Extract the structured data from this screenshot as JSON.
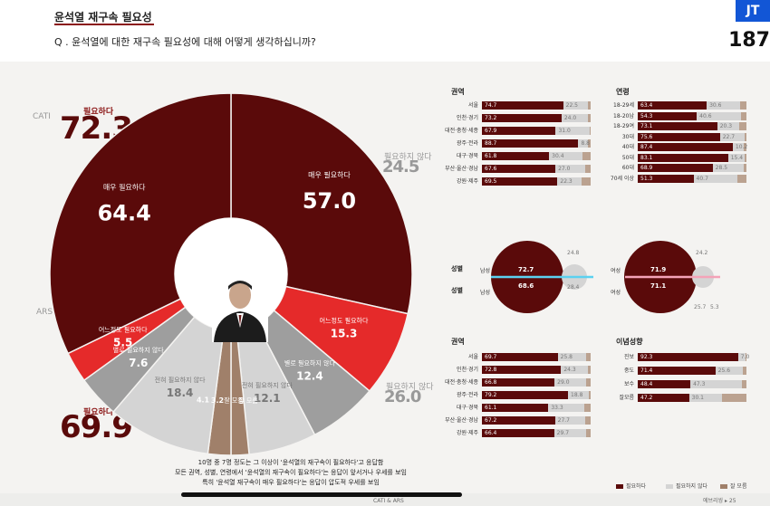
{
  "header": {
    "title": "윤석열 재구속 필요성",
    "question": "Q . 윤석열에 대한 재구속 필요성에 대해 어떻게 생각하십니까?",
    "badge": "JT",
    "badge_number": "187"
  },
  "colors": {
    "dark": "#5a0a0a",
    "red": "#e52a2a",
    "grey_dark": "#9e9e9e",
    "grey_light": "#d4d4d4",
    "brown": "#a0806a",
    "brown_light": "#bba290"
  },
  "donut": {
    "cati_label": "CATI",
    "ars_label": "ARS",
    "cati_need_label": "필요하다",
    "cati_need_total": "72.3",
    "ars_need_label": "필요하다",
    "ars_need_total": "69.9",
    "cati_noneed_label": "필요하지 않다",
    "cati_noneed_total": "24.5",
    "ars_noneed_label": "필요하지 않다",
    "ars_noneed_total": "26.0",
    "segments": [
      {
        "group": "CATI",
        "label": "매우 필요하다",
        "value": 57.0,
        "color": "#5a0a0a"
      },
      {
        "group": "CATI",
        "label": "어느정도 필요하다",
        "value": 15.3,
        "color": "#e52a2a"
      },
      {
        "group": "CATI",
        "label": "별로 필요하지 않다",
        "value": 12.4,
        "color": "#9e9e9e"
      },
      {
        "group": "CATI",
        "label": "전혀 필요하지 않다",
        "value": 12.1,
        "color": "#d4d4d4"
      },
      {
        "group": "CATI",
        "label": "잘 모름",
        "value": 3.2,
        "color": "#a0806a"
      },
      {
        "group": "ARS",
        "label": "잘 모름",
        "value": 4.1,
        "color": "#a0806a"
      },
      {
        "group": "ARS",
        "label": "전혀 필요하지 않다",
        "value": 18.4,
        "color": "#d4d4d4"
      },
      {
        "group": "ARS",
        "label": "별로 필요하지 않다",
        "value": 7.6,
        "color": "#9e9e9e"
      },
      {
        "group": "ARS",
        "label": "어느정도 필요하다",
        "value": 5.5,
        "color": "#e52a2a"
      },
      {
        "group": "ARS",
        "label": "매우 필요하다",
        "value": 64.4,
        "color": "#5a0a0a"
      }
    ]
  },
  "chart_data": [
    {
      "type": "pie",
      "title": "CATI",
      "categories": [
        "매우 필요하다",
        "어느정도 필요하다",
        "별로 필요하지 않다",
        "전혀 필요하지 않다",
        "잘 모름"
      ],
      "values": [
        57.0,
        15.3,
        12.4,
        12.1,
        3.2
      ]
    },
    {
      "type": "pie",
      "title": "ARS",
      "categories": [
        "매우 필요하다",
        "어느정도 필요하다",
        "별로 필요하지 않다",
        "전혀 필요하지 않다",
        "잘 모름"
      ],
      "values": [
        64.4,
        5.5,
        7.6,
        18.4,
        4.1
      ]
    }
  ],
  "region_cati": {
    "title": "권역",
    "rows": [
      {
        "label": "서울",
        "a": 74.7,
        "b": 22.5
      },
      {
        "label": "인천·경기",
        "a": 73.2,
        "b": 24.0
      },
      {
        "label": "대전·충청·세종",
        "a": 67.9,
        "b": 31.0
      },
      {
        "label": "광주·전라",
        "a": 88.7,
        "b": 8.8
      },
      {
        "label": "대구·경북",
        "a": 61.8,
        "b": 30.4
      },
      {
        "label": "부산·울산·경남",
        "a": 67.6,
        "b": 27.0
      },
      {
        "label": "강원·제주",
        "a": 69.5,
        "b": 22.3
      }
    ]
  },
  "age_cati": {
    "title": "연령",
    "rows": [
      {
        "label": "18-29세",
        "a": 63.4,
        "b": 30.6
      },
      {
        "label": "18-20남",
        "a": 54.3,
        "b": 40.6
      },
      {
        "label": "18-29여",
        "a": 73.1,
        "b": 20.3
      },
      {
        "label": "30대",
        "a": 75.6,
        "b": 22.7
      },
      {
        "label": "40대",
        "a": 87.4,
        "b": 10.2
      },
      {
        "label": "50대",
        "a": 83.1,
        "b": 15.4
      },
      {
        "label": "60대",
        "a": 68.9,
        "b": 28.5
      },
      {
        "label": "70세 이상",
        "a": 51.3,
        "b": 40.7
      }
    ]
  },
  "gender": {
    "title_top": "성별",
    "title_bottom": "성별",
    "male_label": "남성",
    "female_label": "여성",
    "male_cati": "72.7",
    "male_ars": "68.6",
    "male_cati_no": "24.8",
    "male_ars_no": "28.4",
    "female_cati": "71.9",
    "female_ars": "71.1",
    "female_cati_no": "24.2",
    "female_ars_no": "25.7",
    "female_ars_dk": "5.3"
  },
  "region_ars": {
    "title": "권역",
    "rows": [
      {
        "label": "서울",
        "a": 69.7,
        "b": 25.8
      },
      {
        "label": "인천·경기",
        "a": 72.8,
        "b": 24.3
      },
      {
        "label": "대전·충청·세종",
        "a": 66.8,
        "b": 29.0
      },
      {
        "label": "광주·전라",
        "a": 79.2,
        "b": 18.8
      },
      {
        "label": "대구·경북",
        "a": 61.1,
        "b": 33.3
      },
      {
        "label": "부산·울산·경남",
        "a": 67.2,
        "b": 27.7
      },
      {
        "label": "강원·제주",
        "a": 66.4,
        "b": 29.7
      }
    ]
  },
  "ideology_ars": {
    "title": "이념성향",
    "rows": [
      {
        "label": "진보",
        "a": 92.3,
        "b": 7.0
      },
      {
        "label": "중도",
        "a": 71.4,
        "b": 25.6
      },
      {
        "label": "보수",
        "a": 48.4,
        "b": 47.3
      },
      {
        "label": "잘모름",
        "a": 47.2,
        "b": 30.1
      }
    ]
  },
  "notes": {
    "line1": "10명 중 7명 정도는 그 이상이 '윤석열의 재구속이 필요하다'고 응답함",
    "line2": "모든 권역, 성별, 연령에서 '윤석열의 재구속이 필요하다'는 응답이 앞서거나 우세를 보임",
    "line3": "특히 '윤석열 재구속이 매우 필요하다'는 응답이 압도적 우세를 보임"
  },
  "legend": {
    "need": "필요하다",
    "noneed": "필요하지 않다",
    "dk": "잘 모름"
  },
  "footer": {
    "center": "CATI & ARS",
    "right": "에브리씽 ▸ 25"
  }
}
